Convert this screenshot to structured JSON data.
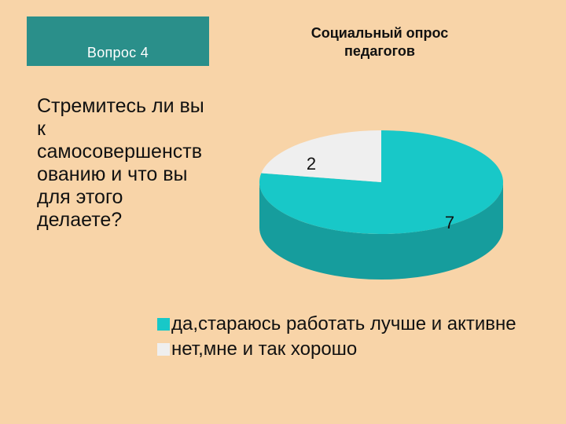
{
  "header": {
    "question_number": "Вопрос 4",
    "chart_title": "Социальный опрос\nпедагогов"
  },
  "question": {
    "text": "Стремитесь ли вы\nк\nсамосовершенств\nованию и что вы\nдля этого\nделаете?"
  },
  "colors": {
    "background": "#f8d4a8",
    "title_box": "#2a8f8a",
    "series_yes_top": "#18c8c8",
    "series_yes_side": "#169d9d",
    "series_no_top": "#efefef",
    "series_no_side": "#bdbdbd"
  },
  "chart_data": {
    "type": "pie",
    "title": "Социальный опрос педагогов",
    "categories": [
      "да,стараюсь работать лучше и активне",
      "нет,мне и так хорошо"
    ],
    "values": [
      7,
      2
    ],
    "data_labels": [
      "7",
      "2"
    ],
    "legend_placement": "bottom",
    "style": "3d"
  },
  "legend": {
    "items": [
      {
        "label": "да,стараюсь работать лучше и активне"
      },
      {
        "label": "нет,мне и так хорошо"
      }
    ]
  }
}
